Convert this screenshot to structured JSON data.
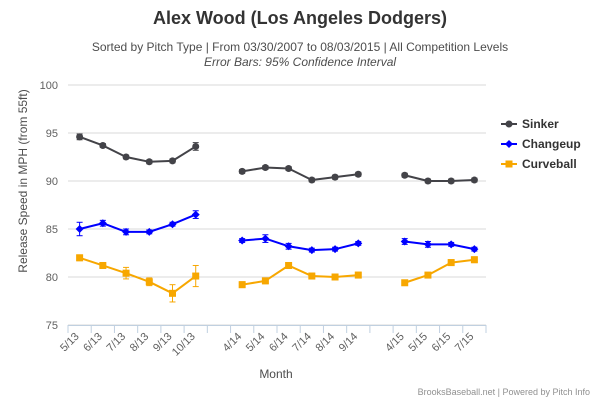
{
  "chart_data": {
    "type": "line",
    "title": "Alex Wood (Los Angeles Dodgers)",
    "subtitle": "Sorted by Pitch Type | From 03/30/2007 to 08/03/2015 | All Competition Levels",
    "subtitle2": "Error Bars: 95% Confidence Interval",
    "xlabel": "Month",
    "ylabel": "Release Speed in MPH (from 55ft)",
    "ylim": [
      75,
      100
    ],
    "yticks": [
      75,
      80,
      85,
      90,
      95,
      100
    ],
    "categories": [
      "5/13",
      "6/13",
      "7/13",
      "8/13",
      "9/13",
      "10/13",
      "",
      "4/14",
      "5/14",
      "6/14",
      "7/14",
      "8/14",
      "9/14",
      "",
      "4/15",
      "5/15",
      "6/15",
      "7/15"
    ],
    "grid": true,
    "legend_position": "right",
    "series": [
      {
        "name": "Sinker",
        "color": "#434348",
        "marker": "circle",
        "values": [
          94.6,
          93.7,
          92.5,
          92.0,
          92.1,
          93.6,
          null,
          91.0,
          91.4,
          91.3,
          90.1,
          90.4,
          90.7,
          null,
          90.6,
          90.0,
          90.0,
          90.1
        ],
        "errors": [
          0.3,
          0.2,
          0.2,
          0.2,
          0.2,
          0.4,
          null,
          0.2,
          0.2,
          0.2,
          0.2,
          0.2,
          0.2,
          null,
          0.2,
          0.2,
          0.2,
          0.2
        ]
      },
      {
        "name": "Changeup",
        "color": "#0000ff",
        "marker": "diamond",
        "values": [
          85.0,
          85.6,
          84.7,
          84.7,
          85.5,
          86.5,
          null,
          83.8,
          84.0,
          83.2,
          82.8,
          82.9,
          83.5,
          null,
          83.7,
          83.4,
          83.4,
          82.9
        ],
        "errors": [
          0.7,
          0.3,
          0.3,
          0.2,
          0.2,
          0.4,
          null,
          0.2,
          0.4,
          0.3,
          0.2,
          0.2,
          0.2,
          null,
          0.3,
          0.3,
          0.2,
          0.2
        ]
      },
      {
        "name": "Curveball",
        "color": "#f7a700",
        "marker": "square",
        "values": [
          82.0,
          81.2,
          80.4,
          79.5,
          78.3,
          80.1,
          null,
          79.2,
          79.6,
          81.2,
          80.1,
          80.0,
          80.2,
          null,
          79.4,
          80.2,
          81.5,
          81.8
        ],
        "errors": [
          0.3,
          0.3,
          0.6,
          0.4,
          0.9,
          1.1,
          null,
          0.3,
          0.3,
          0.3,
          0.3,
          0.2,
          0.3,
          null,
          0.2,
          0.2,
          0.3,
          0.3
        ]
      }
    ],
    "credits": "BrooksBaseball.net | Powered by Pitch Info"
  }
}
